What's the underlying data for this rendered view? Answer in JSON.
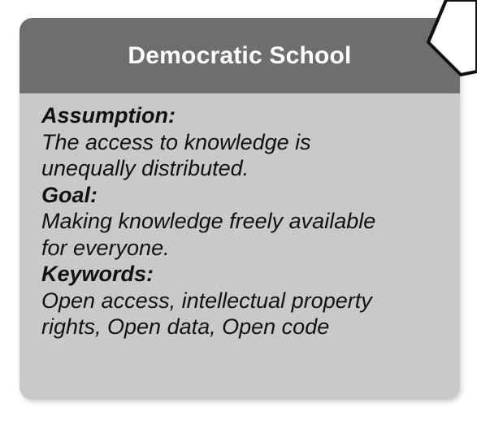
{
  "card": {
    "title": "Democratic School",
    "sections": [
      {
        "label": "Assumption:",
        "lines": [
          "The access to knowledge is",
          "unequally distributed."
        ]
      },
      {
        "label": "Goal:",
        "lines": [
          "Making knowledge freely available",
          "for everyone."
        ]
      },
      {
        "label": "Keywords:",
        "lines": [
          "Open access, intellectual property",
          "rights, Open data, Open code"
        ]
      }
    ]
  },
  "colors": {
    "header": "#6e6e6e",
    "body": "#c9c9c9",
    "title_text": "#ffffff",
    "body_text": "#111111"
  }
}
